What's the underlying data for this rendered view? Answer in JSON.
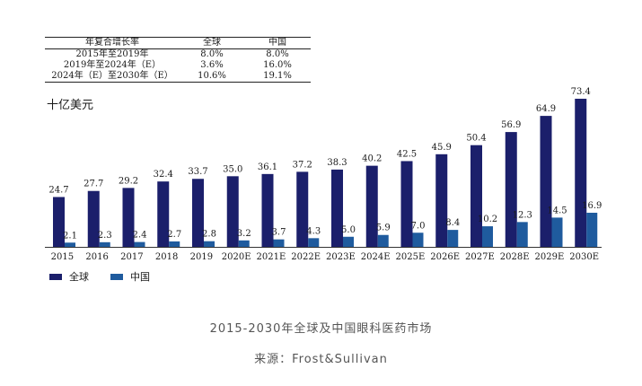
{
  "cagr_table": {
    "headers": [
      "年复合增长率",
      "全球",
      "中国"
    ],
    "rows": [
      [
        "2015年至2019年",
        "8.0%",
        "8.0%"
      ],
      [
        "2019年至2024年（E）",
        "3.6%",
        "16.0%"
      ],
      [
        "2024年（E）至2030年（E）",
        "10.6%",
        "19.1%"
      ]
    ]
  },
  "caption": "2015-2030年全球及中国眼科医药市场",
  "source": "来源：Frost&Sullivan",
  "chart_data": {
    "type": "bar",
    "ylabel": "十亿美元",
    "categories": [
      "2015",
      "2016",
      "2017",
      "2018",
      "2019",
      "2020E",
      "2021E",
      "2022E",
      "2023E",
      "2024E",
      "2025E",
      "2026E",
      "2027E",
      "2028E",
      "2029E",
      "2030E"
    ],
    "series": [
      {
        "name": "全球",
        "color": "#1b1f6b",
        "values": [
          24.7,
          27.7,
          29.2,
          32.4,
          33.7,
          35.0,
          36.1,
          37.2,
          38.3,
          40.2,
          42.5,
          45.9,
          50.4,
          56.9,
          64.9,
          73.4
        ]
      },
      {
        "name": "中国",
        "color": "#1f5b9e",
        "values": [
          2.1,
          2.3,
          2.4,
          2.7,
          2.8,
          3.2,
          3.7,
          4.3,
          5.0,
          5.9,
          7.0,
          8.4,
          10.2,
          12.3,
          14.5,
          16.9
        ]
      }
    ],
    "ylim": [
      0,
      73.4
    ],
    "legend_position": "bottom-left",
    "grid": false
  }
}
